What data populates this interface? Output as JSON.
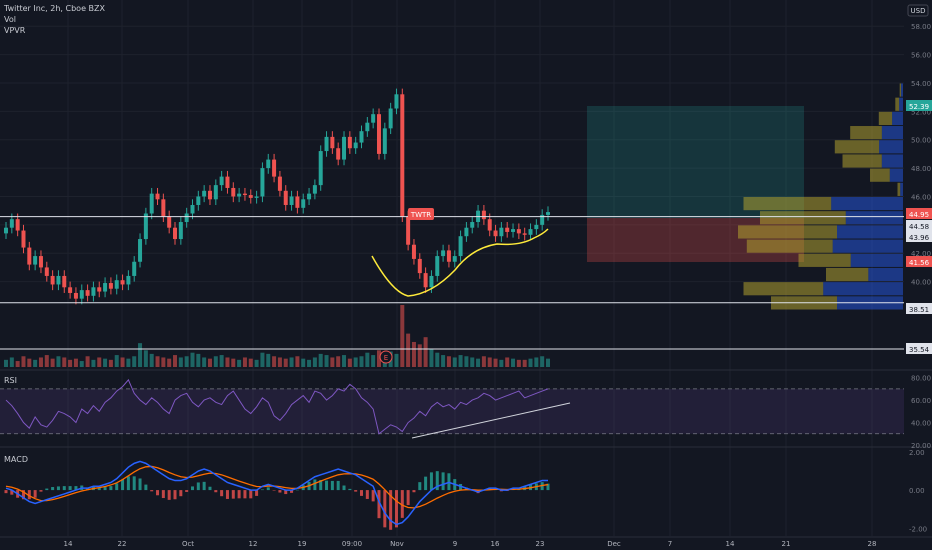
{
  "header": {
    "title": "Twitter Inc, 2h, Cboe BZX",
    "line2": "Vol",
    "line3": "VPVR"
  },
  "currency": "USD",
  "panes": {
    "rsi": "RSI",
    "macd": "MACD"
  },
  "annotations": {
    "symbol_tag": "TWTR",
    "earnings": "E"
  },
  "colors": {
    "bg": "#131722",
    "grid": "#1e222d",
    "up": "#26a69a",
    "down": "#ef5350",
    "rsi": "#7e57c2",
    "macd": "#2962ff",
    "signal": "#ff6d00",
    "yellow": "#ffeb3b"
  },
  "chart_data": [
    {
      "type": "candlestick",
      "pane": "price",
      "x_ticks": [
        "14",
        "22",
        "Oct",
        "12",
        "19",
        "09:00",
        "Nov",
        "9",
        "16",
        "23",
        "Dec",
        "7",
        "14",
        "21",
        "28"
      ],
      "y_ticks": [
        40.0,
        42.0,
        44.0,
        46.0,
        48.0,
        50.0,
        52.0,
        54.0,
        56.0,
        58.0
      ],
      "ylim": [
        38,
        59
      ],
      "price_labels": [
        {
          "value": "52.39",
          "color": "#26a69a"
        },
        {
          "value": "44.95",
          "color": "#ef5350"
        },
        {
          "value": "44.58",
          "color": "#e0e3eb"
        },
        {
          "value": "43.96",
          "color": "#e0e3eb"
        },
        {
          "value": "41.56",
          "color": "#ef5350"
        },
        {
          "value": "38.51",
          "color": "#e0e3eb"
        },
        {
          "value": "35.54",
          "color": "#e0e3eb"
        }
      ],
      "horizontal_lines": [
        44.58,
        38.51,
        35.54
      ],
      "closes": [
        43.8,
        44.4,
        43.6,
        42.4,
        41.2,
        41.8,
        41.0,
        40.4,
        39.8,
        40.4,
        39.6,
        39.2,
        38.8,
        39.4,
        39.0,
        39.6,
        39.3,
        39.9,
        39.5,
        40.1,
        39.8,
        40.4,
        41.4,
        43.0,
        44.8,
        46.2,
        45.8,
        44.6,
        43.8,
        43.0,
        44.2,
        44.8,
        45.4,
        46.0,
        46.4,
        45.8,
        46.8,
        47.4,
        46.6,
        46.0,
        46.2,
        46.1,
        45.9,
        46.0,
        48.0,
        48.6,
        47.4,
        46.4,
        45.4,
        46.0,
        45.2,
        45.8,
        46.2,
        46.8,
        49.2,
        50.2,
        49.4,
        48.6,
        50.2,
        49.4,
        49.8,
        50.6,
        51.2,
        51.8,
        49.0,
        50.8,
        52.2,
        53.2,
        44.6,
        42.6,
        41.6,
        40.6,
        39.6,
        40.4,
        41.8,
        42.2,
        41.4,
        41.8,
        43.2,
        43.8,
        44.2,
        45.0,
        44.4,
        43.6,
        43.2,
        43.8,
        43.5,
        43.7,
        43.4,
        43.3,
        43.7,
        44.0,
        44.7,
        44.9
      ]
    },
    {
      "type": "bar",
      "pane": "volume",
      "series_name": "Vol",
      "values": [
        6,
        8,
        5,
        9,
        7,
        6,
        8,
        10,
        7,
        9,
        8,
        6,
        7,
        5,
        9,
        6,
        8,
        7,
        6,
        10,
        8,
        7,
        9,
        20,
        14,
        11,
        9,
        8,
        7,
        10,
        8,
        9,
        12,
        11,
        8,
        7,
        9,
        10,
        8,
        7,
        6,
        8,
        7,
        6,
        12,
        11,
        9,
        8,
        7,
        8,
        9,
        7,
        6,
        8,
        11,
        10,
        8,
        9,
        10,
        7,
        8,
        9,
        12,
        10,
        14,
        12,
        13,
        11,
        52,
        28,
        21,
        19,
        25,
        15,
        12,
        10,
        9,
        8,
        10,
        9,
        8,
        7,
        9,
        8,
        7,
        6,
        8,
        7,
        6,
        6,
        7,
        8,
        9,
        7
      ]
    },
    {
      "type": "line",
      "pane": "rsi",
      "series_name": "RSI",
      "y_ticks": [
        20.0,
        40.0,
        60.0,
        80.0
      ],
      "ylim": [
        20,
        85
      ],
      "bands": [
        30,
        70
      ],
      "values": [
        60,
        55,
        48,
        40,
        35,
        45,
        38,
        36,
        42,
        50,
        48,
        45,
        40,
        52,
        48,
        55,
        50,
        58,
        62,
        68,
        72,
        78,
        66,
        60,
        56,
        62,
        58,
        52,
        48,
        60,
        64,
        66,
        58,
        54,
        60,
        62,
        58,
        56,
        64,
        68,
        60,
        52,
        48,
        54,
        62,
        58,
        46,
        42,
        48,
        56,
        60,
        64,
        58,
        68,
        66,
        60,
        64,
        70,
        68,
        74,
        70,
        62,
        58,
        52,
        30,
        34,
        38,
        36,
        32,
        40,
        44,
        50,
        46,
        54,
        58,
        54,
        56,
        52,
        58,
        56,
        60,
        62,
        66,
        64,
        60,
        62,
        64,
        66,
        68,
        62,
        64,
        66,
        68,
        70
      ]
    },
    {
      "type": "line",
      "pane": "macd",
      "y_ticks": [
        2.0,
        0.0,
        -2.0
      ],
      "ylim": [
        -2.3,
        2.1
      ],
      "series": [
        {
          "name": "MACD",
          "values": [
            0.1,
            0,
            -0.2,
            -0.4,
            -0.6,
            -0.7,
            -0.6,
            -0.5,
            -0.4,
            -0.3,
            -0.2,
            -0.1,
            0,
            0.1,
            0.1,
            0.2,
            0.2,
            0.3,
            0.4,
            0.6,
            0.9,
            1.2,
            1.4,
            1.5,
            1.4,
            1.2,
            1,
            0.8,
            0.6,
            0.5,
            0.5,
            0.6,
            0.8,
            1,
            1.1,
            1,
            0.8,
            0.6,
            0.4,
            0.3,
            0.2,
            0.1,
            0,
            0,
            0.2,
            0.3,
            0.2,
            0.1,
            0,
            0,
            0.1,
            0.3,
            0.5,
            0.7,
            0.8,
            0.9,
            1,
            1.1,
            1,
            0.9,
            0.8,
            0.6,
            0.4,
            0.2,
            -0.6,
            -1.2,
            -1.6,
            -1.8,
            -1.7,
            -1.4,
            -1,
            -0.6,
            -0.3,
            0,
            0.2,
            0.3,
            0.4,
            0.3,
            0.2,
            0.1,
            0,
            -0.1,
            0,
            0.1,
            0.1,
            0,
            0,
            0.1,
            0.1,
            0.2,
            0.3,
            0.4,
            0.5,
            0.5
          ]
        },
        {
          "name": "Signal",
          "values": [
            0.2,
            0.15,
            0.05,
            -0.1,
            -0.3,
            -0.45,
            -0.55,
            -0.55,
            -0.5,
            -0.42,
            -0.33,
            -0.23,
            -0.13,
            -0.05,
            0.02,
            0.08,
            0.13,
            0.19,
            0.27,
            0.38,
            0.55,
            0.75,
            0.95,
            1.12,
            1.22,
            1.24,
            1.17,
            1.06,
            0.92,
            0.8,
            0.7,
            0.66,
            0.68,
            0.75,
            0.83,
            0.89,
            0.87,
            0.8,
            0.69,
            0.58,
            0.47,
            0.37,
            0.27,
            0.19,
            0.18,
            0.21,
            0.21,
            0.18,
            0.13,
            0.09,
            0.09,
            0.14,
            0.23,
            0.35,
            0.47,
            0.59,
            0.7,
            0.8,
            0.85,
            0.86,
            0.85,
            0.79,
            0.69,
            0.57,
            0.32,
            0.02,
            -0.3,
            -0.58,
            -0.79,
            -0.91,
            -0.93,
            -0.86,
            -0.74,
            -0.58,
            -0.42,
            -0.28,
            -0.15,
            -0.06,
            0,
            0.02,
            0.02,
            0,
            0,
            0.02,
            0.04,
            0.04,
            0.03,
            0.04,
            0.05,
            0.08,
            0.12,
            0.18,
            0.24,
            0.29
          ]
        }
      ]
    },
    {
      "type": "table",
      "pane": "price",
      "series_name": "VPVR",
      "levels": [
        {
          "price": 53.5,
          "total": 3,
          "up_frac": 0.6
        },
        {
          "price": 52.5,
          "total": 7,
          "up_frac": 0.5
        },
        {
          "price": 51.5,
          "total": 22,
          "up_frac": 0.45
        },
        {
          "price": 50.5,
          "total": 48,
          "up_frac": 0.4
        },
        {
          "price": 49.5,
          "total": 62,
          "up_frac": 0.35
        },
        {
          "price": 48.5,
          "total": 55,
          "up_frac": 0.35
        },
        {
          "price": 47.5,
          "total": 30,
          "up_frac": 0.4
        },
        {
          "price": 46.5,
          "total": 5,
          "up_frac": 0.5
        },
        {
          "price": 45.5,
          "total": 145,
          "up_frac": 0.45
        },
        {
          "price": 44.5,
          "total": 130,
          "up_frac": 0.4
        },
        {
          "price": 43.5,
          "total": 150,
          "up_frac": 0.4
        },
        {
          "price": 42.5,
          "total": 142,
          "up_frac": 0.45
        },
        {
          "price": 41.5,
          "total": 95,
          "up_frac": 0.5
        },
        {
          "price": 40.5,
          "total": 70,
          "up_frac": 0.45
        },
        {
          "price": 39.5,
          "total": 145,
          "up_frac": 0.5
        },
        {
          "price": 38.5,
          "total": 120,
          "up_frac": 0.5
        }
      ]
    }
  ]
}
